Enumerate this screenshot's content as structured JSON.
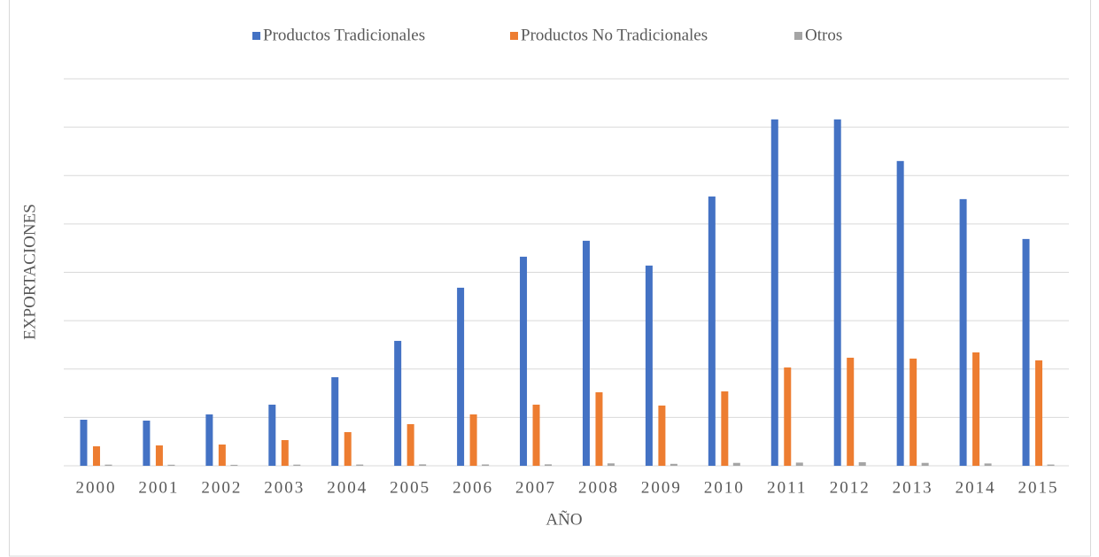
{
  "chart_data": {
    "type": "bar",
    "x_label": "AÑO",
    "y_label": "EXPORTACIONES",
    "categories": [
      "2000",
      "2001",
      "2002",
      "2003",
      "2004",
      "2005",
      "2006",
      "2007",
      "2008",
      "2009",
      "2010",
      "2011",
      "2012",
      "2013",
      "2014",
      "2015"
    ],
    "series": [
      {
        "name": "Productos Tradicionales",
        "color": "#4472c4",
        "values": [
          4762,
          4670,
          5311,
          6319,
          9158,
          12912,
          18407,
          21612,
          23260,
          20696,
          27839,
          35806,
          35806,
          31502,
          27564,
          23443
        ]
      },
      {
        "name": "Productos No Tradicionales",
        "color": "#ed7d31",
        "values": [
          2015,
          2106,
          2198,
          2656,
          3480,
          4304,
          5311,
          6319,
          7601,
          6227,
          7692,
          10165,
          11172,
          11081,
          11722,
          10897
        ]
      },
      {
        "name": "Otros",
        "color": "#a5a5a5",
        "values": [
          120,
          110,
          100,
          120,
          130,
          150,
          140,
          150,
          250,
          200,
          300,
          330,
          370,
          300,
          240,
          130
        ]
      }
    ],
    "ylim": [
      0,
      40000
    ],
    "yticks": [
      0,
      5000,
      10000,
      15000,
      20000,
      25000,
      30000,
      35000,
      40000
    ],
    "grid": true
  }
}
